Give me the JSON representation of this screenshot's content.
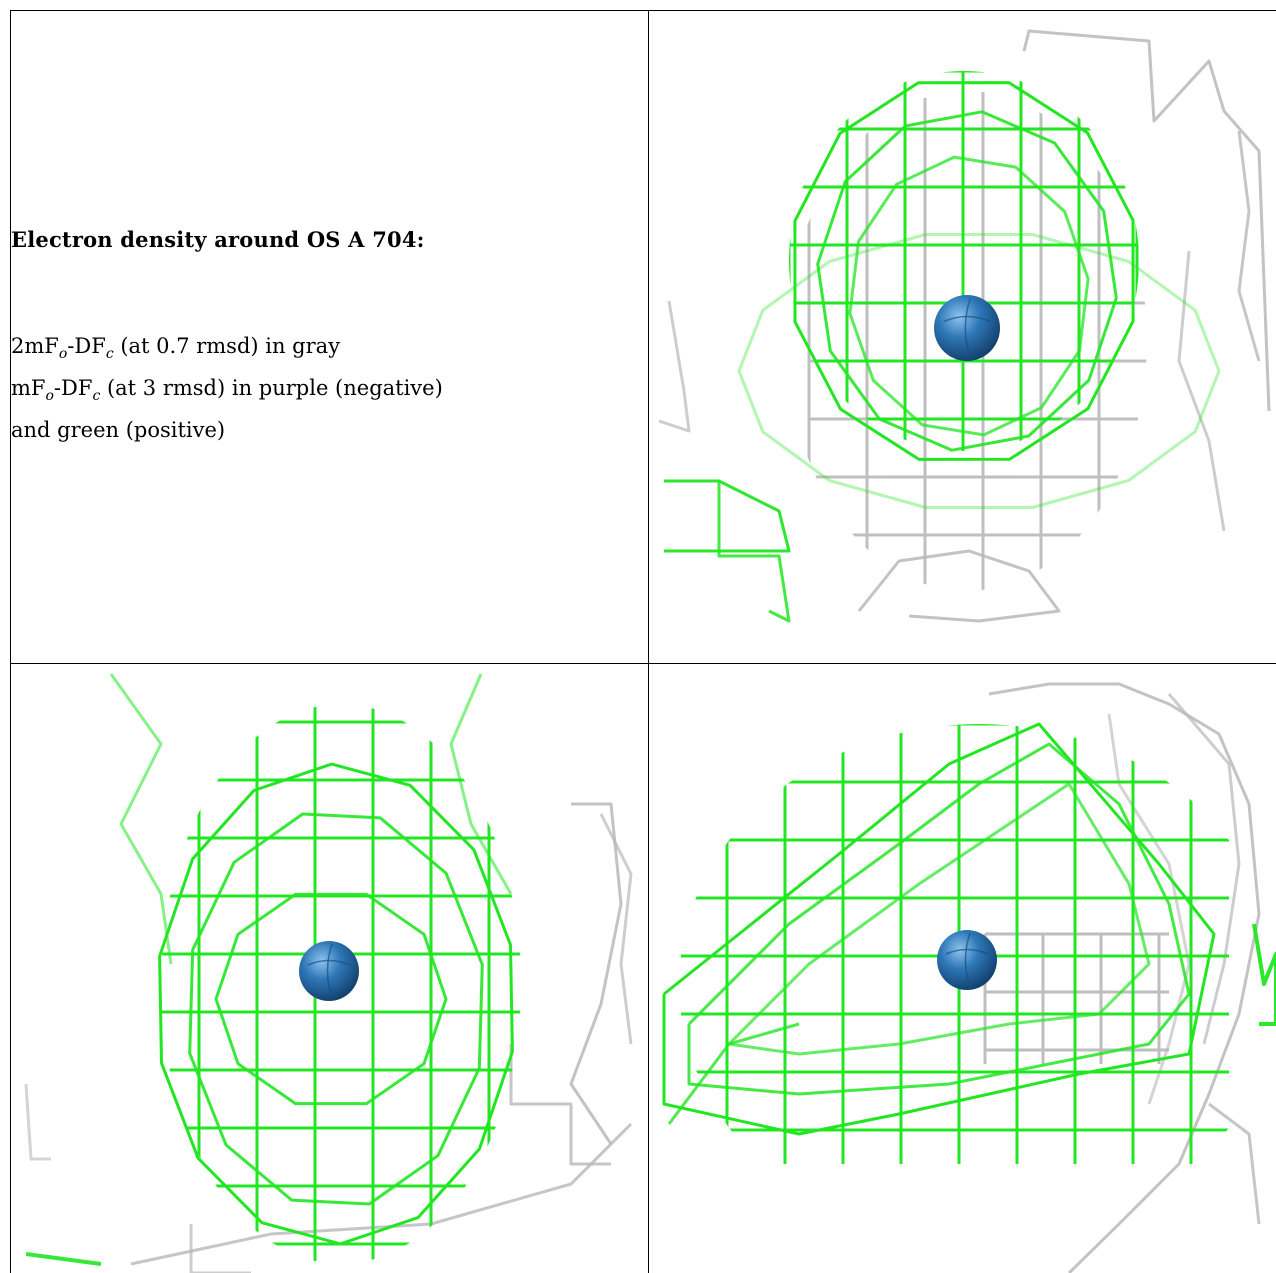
{
  "caption": {
    "title": "Electron density around OS A 704:",
    "line1": {
      "a": "2mF",
      "sub1": "o",
      "b": "-DF",
      "sub2": "c",
      "rest": " (at 0.7 rmsd) in gray"
    },
    "line2": {
      "a": "mF",
      "sub1": "o",
      "b": "-DF",
      "sub2": "c",
      "rest": " (at 3 rmsd) in purple (negative)"
    },
    "line3": "and green (positive)"
  },
  "colors": {
    "positive_mesh": "#22e622",
    "twofofc_mesh": "#b8b8b8",
    "atom": "#2e78b8"
  },
  "panels": [
    {
      "name": "view-top-right",
      "atom": "OS A 704"
    },
    {
      "name": "view-bottom-left",
      "atom": "OS A 704"
    },
    {
      "name": "view-bottom-right",
      "atom": "OS A 704"
    }
  ]
}
